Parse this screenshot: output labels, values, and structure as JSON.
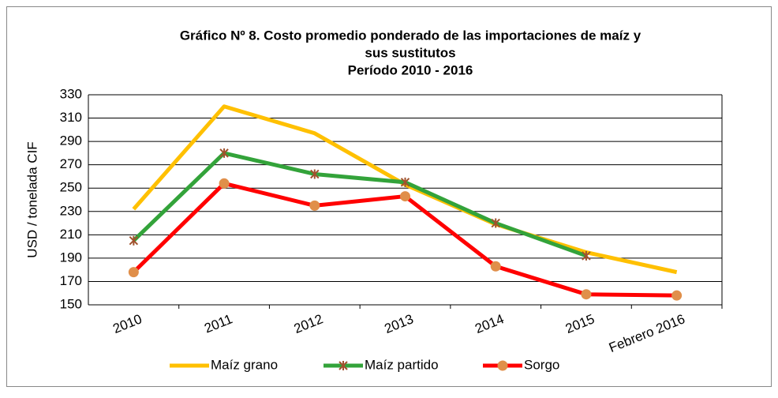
{
  "chart_data": {
    "type": "line",
    "title_lines": [
      "Gráfico Nº 8. Costo promedio ponderado de las importaciones de maíz y",
      "sus sustitutos",
      "Período 2010 - 2016"
    ],
    "y_label": "USD / tonelada CIF",
    "categories": [
      "2010",
      "2011",
      "2012",
      "2013",
      "2014",
      "2015",
      "Febrero 2016"
    ],
    "series": [
      {
        "name": "Maíz grano",
        "color": "#ffc000",
        "values": [
          232,
          320,
          297,
          253,
          219,
          195,
          178
        ]
      },
      {
        "name": "Maíz partido",
        "color": "#33a33a",
        "marker": "star",
        "marker_color": "#a0522d",
        "values": [
          205,
          280,
          262,
          255,
          220,
          192,
          null
        ]
      },
      {
        "name": "Sorgo",
        "color": "#ff0000",
        "marker": "circle",
        "marker_color": "#e08f4a",
        "values": [
          178,
          254,
          235,
          243,
          183,
          159,
          158
        ]
      }
    ],
    "ylim": [
      150,
      330
    ],
    "yticks": [
      150,
      170,
      190,
      210,
      230,
      250,
      270,
      290,
      310,
      330
    ],
    "grid": true,
    "legend": "bottom"
  }
}
